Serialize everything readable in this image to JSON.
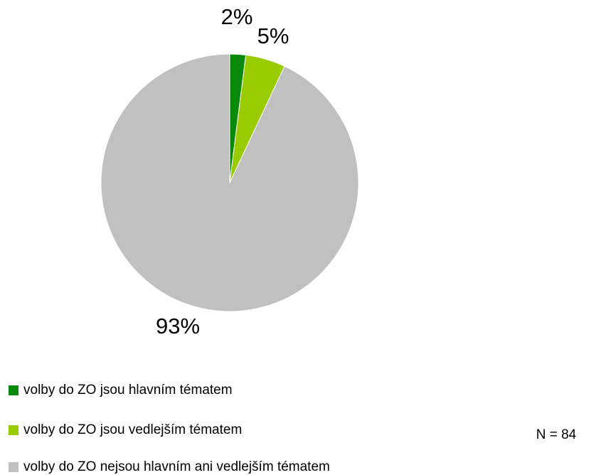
{
  "chart_data": {
    "type": "pie",
    "categories": [
      "volby do ZO jsou hlavním tématem",
      "volby do ZO jsou vedlejším tématem",
      "volby do ZO nejsou hlavním ani vedlejším tématem"
    ],
    "values": [
      2,
      5,
      93
    ],
    "value_labels": [
      "2%",
      "5%",
      "93%"
    ],
    "colors": [
      "#0a8a0a",
      "#99cc00",
      "#c0c0c0"
    ],
    "annotation": "N = 84"
  }
}
